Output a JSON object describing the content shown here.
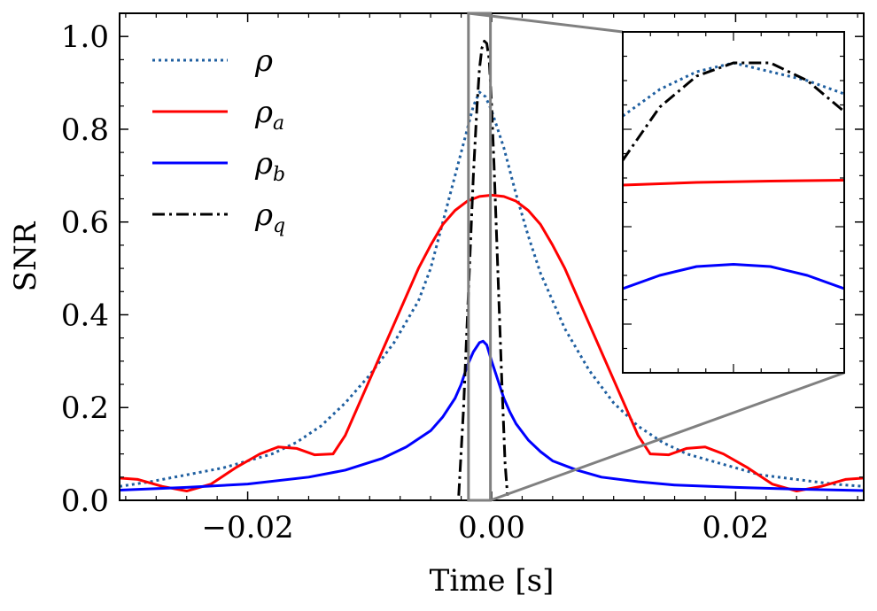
{
  "chart_data": {
    "type": "line",
    "title": "",
    "xlabel": "Time [s]",
    "ylabel": "SNR",
    "xlim": [
      -0.0305,
      0.0305
    ],
    "ylim": [
      0.0,
      1.05
    ],
    "x_ticks": [
      -0.02,
      0.0,
      0.02
    ],
    "x_tick_labels": [
      "−0.02",
      "0.00",
      "0.02"
    ],
    "y_ticks": [
      0.0,
      0.2,
      0.4,
      0.6,
      0.8,
      1.0
    ],
    "y_tick_labels": [
      "0.0",
      "0.2",
      "0.4",
      "0.6",
      "0.8",
      "1.0"
    ],
    "legend_position": "top-left",
    "series": [
      {
        "name": "ρ",
        "symbol": "ρ",
        "subscript": "",
        "color": "#1f5fa0",
        "style": "dotted",
        "x": [
          -0.0305,
          -0.028,
          -0.025,
          -0.022,
          -0.02,
          -0.018,
          -0.016,
          -0.014,
          -0.012,
          -0.01,
          -0.008,
          -0.006,
          -0.005,
          -0.004,
          -0.003,
          -0.002,
          -0.0015,
          -0.001,
          -0.0005,
          0.0,
          0.0005,
          0.001,
          0.002,
          0.003,
          0.004,
          0.005,
          0.006,
          0.008,
          0.01,
          0.012,
          0.014,
          0.016,
          0.018,
          0.02,
          0.022,
          0.025,
          0.028,
          0.0305
        ],
        "y": [
          0.03,
          0.04,
          0.055,
          0.07,
          0.085,
          0.1,
          0.125,
          0.16,
          0.21,
          0.27,
          0.34,
          0.43,
          0.5,
          0.6,
          0.7,
          0.8,
          0.85,
          0.88,
          0.87,
          0.84,
          0.8,
          0.76,
          0.66,
          0.57,
          0.49,
          0.43,
          0.37,
          0.28,
          0.21,
          0.16,
          0.125,
          0.1,
          0.085,
          0.07,
          0.055,
          0.045,
          0.035,
          0.03
        ]
      },
      {
        "name": "ρ_a",
        "symbol": "ρ",
        "subscript": "a",
        "color": "#ff0000",
        "style": "solid",
        "x": [
          -0.0305,
          -0.029,
          -0.027,
          -0.025,
          -0.023,
          -0.021,
          -0.019,
          -0.0175,
          -0.016,
          -0.0145,
          -0.013,
          -0.012,
          -0.011,
          -0.01,
          -0.009,
          -0.008,
          -0.007,
          -0.006,
          -0.005,
          -0.004,
          -0.003,
          -0.002,
          -0.001,
          0.0,
          0.001,
          0.002,
          0.003,
          0.004,
          0.005,
          0.006,
          0.007,
          0.008,
          0.009,
          0.01,
          0.011,
          0.012,
          0.013,
          0.0145,
          0.016,
          0.0175,
          0.019,
          0.021,
          0.023,
          0.025,
          0.027,
          0.029,
          0.0305
        ],
        "y": [
          0.048,
          0.045,
          0.03,
          0.02,
          0.035,
          0.07,
          0.1,
          0.115,
          0.112,
          0.098,
          0.1,
          0.14,
          0.2,
          0.26,
          0.32,
          0.38,
          0.44,
          0.5,
          0.55,
          0.595,
          0.625,
          0.645,
          0.655,
          0.658,
          0.655,
          0.645,
          0.625,
          0.595,
          0.55,
          0.5,
          0.44,
          0.38,
          0.32,
          0.26,
          0.2,
          0.14,
          0.1,
          0.098,
          0.112,
          0.115,
          0.1,
          0.07,
          0.035,
          0.02,
          0.03,
          0.045,
          0.048
        ]
      },
      {
        "name": "ρ_b",
        "symbol": "ρ",
        "subscript": "b",
        "color": "#0000ff",
        "style": "solid",
        "x": [
          -0.0305,
          -0.025,
          -0.02,
          -0.015,
          -0.012,
          -0.009,
          -0.007,
          -0.005,
          -0.004,
          -0.003,
          -0.0025,
          -0.002,
          -0.0015,
          -0.001,
          -0.0007,
          -0.0004,
          0.0,
          0.0005,
          0.001,
          0.0015,
          0.002,
          0.003,
          0.004,
          0.005,
          0.007,
          0.009,
          0.012,
          0.015,
          0.02,
          0.025,
          0.0305
        ],
        "y": [
          0.022,
          0.028,
          0.035,
          0.05,
          0.065,
          0.09,
          0.115,
          0.15,
          0.18,
          0.22,
          0.25,
          0.29,
          0.32,
          0.34,
          0.343,
          0.335,
          0.3,
          0.26,
          0.22,
          0.19,
          0.165,
          0.13,
          0.105,
          0.085,
          0.065,
          0.05,
          0.04,
          0.033,
          0.028,
          0.024,
          0.021
        ]
      },
      {
        "name": "ρ_q",
        "symbol": "ρ",
        "subscript": "q",
        "color": "#000000",
        "style": "dashdot",
        "x": [
          -0.0027,
          -0.0023,
          -0.0019,
          -0.0015,
          -0.0012,
          -0.001,
          -0.0008,
          -0.0006,
          -0.0004,
          -0.0002,
          0.0,
          0.0002,
          0.0005,
          0.0008,
          0.0011,
          0.0013
        ],
        "y": [
          0.01,
          0.2,
          0.45,
          0.7,
          0.85,
          0.93,
          0.975,
          0.99,
          0.985,
          0.95,
          0.85,
          0.72,
          0.5,
          0.28,
          0.08,
          0.01
        ]
      }
    ],
    "zoom_region": {
      "xlim": [
        -0.0019,
        -0.0001
      ],
      "ylim": [
        0.0,
        1.05
      ]
    },
    "inset": {
      "xlim": [
        -0.0019,
        -0.0001
      ],
      "ylim": [
        0.28,
        1.05
      ],
      "series": [
        {
          "name": "ρ",
          "color": "#1f5fa0",
          "style": "dotted",
          "x": [
            -0.0019,
            -0.0016,
            -0.0013,
            -0.001,
            -0.0007,
            -0.0004,
            -0.0001
          ],
          "y": [
            0.86,
            0.92,
            0.96,
            0.98,
            0.96,
            0.94,
            0.91
          ]
        },
        {
          "name": "ρ_a",
          "color": "#ff0000",
          "style": "solid",
          "x": [
            -0.0019,
            -0.0013,
            -0.0007,
            -0.0001
          ],
          "y": [
            0.704,
            0.71,
            0.713,
            0.715
          ]
        },
        {
          "name": "ρ_b",
          "color": "#0000ff",
          "style": "solid",
          "x": [
            -0.0019,
            -0.0016,
            -0.0013,
            -0.001,
            -0.0007,
            -0.0004,
            -0.0001
          ],
          "y": [
            0.47,
            0.5,
            0.52,
            0.525,
            0.52,
            0.5,
            0.47
          ]
        },
        {
          "name": "ρ_q",
          "color": "#000000",
          "style": "dashdot",
          "x": [
            -0.0019,
            -0.0016,
            -0.0013,
            -0.001,
            -0.0007,
            -0.0004,
            -0.0001
          ],
          "y": [
            0.76,
            0.88,
            0.95,
            0.98,
            0.98,
            0.94,
            0.87
          ]
        }
      ]
    }
  }
}
